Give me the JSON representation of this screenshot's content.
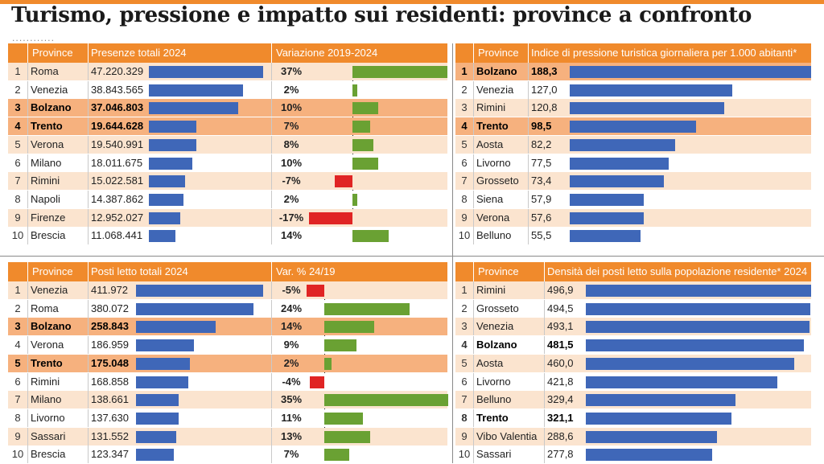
{
  "title": "Turismo, pressione e impatto sui residenti: province a confronto",
  "dots": "............",
  "colors": {
    "accent": "#f08a2c",
    "bar": "#3f67b8",
    "positive": "#6aa133",
    "negative": "#e02424",
    "highlight_row": "#f6b17e",
    "odd_row": "#fbe4cf"
  },
  "chart_data": [
    {
      "type": "table",
      "headers": {
        "province": "Province",
        "value": "Presenze totali 2024",
        "change": "Variazione 2019-2024"
      },
      "highlight_ranks": [
        3,
        4
      ],
      "rows": [
        {
          "rank": "1",
          "province": "Roma",
          "value_label": "47.220.329",
          "value": 47220329,
          "change_label": "37%",
          "change": 37
        },
        {
          "rank": "2",
          "province": "Venezia",
          "value_label": "38.843.565",
          "value": 38843565,
          "change_label": "2%",
          "change": 2
        },
        {
          "rank": "3",
          "province": "Bolzano",
          "value_label": "37.046.803",
          "value": 37046803,
          "change_label": "10%",
          "change": 10
        },
        {
          "rank": "4",
          "province": "Trento",
          "value_label": "19.644.628",
          "value": 19644628,
          "change_label": "7%",
          "change": 7
        },
        {
          "rank": "5",
          "province": "Verona",
          "value_label": "19.540.991",
          "value": 19540991,
          "change_label": "8%",
          "change": 8
        },
        {
          "rank": "6",
          "province": "Milano",
          "value_label": "18.011.675",
          "value": 18011675,
          "change_label": "10%",
          "change": 10
        },
        {
          "rank": "7",
          "province": "Rimini",
          "value_label": "15.022.581",
          "value": 15022581,
          "change_label": "-7%",
          "change": -7
        },
        {
          "rank": "8",
          "province": "Napoli",
          "value_label": "14.387.862",
          "value": 14387862,
          "change_label": "2%",
          "change": 2
        },
        {
          "rank": "9",
          "province": "Firenze",
          "value_label": "12.952.027",
          "value": 12952027,
          "change_label": "-17%",
          "change": -17
        },
        {
          "rank": "10",
          "province": "Brescia",
          "value_label": "11.068.441",
          "value": 11068441,
          "change_label": "14%",
          "change": 14
        }
      ]
    },
    {
      "type": "table",
      "headers": {
        "province": "Province",
        "value": "Indice di pressione turistica giornaliera per 1.000 abitanti*"
      },
      "highlight_ranks": [
        1,
        4
      ],
      "rows": [
        {
          "rank": "1",
          "province": "Bolzano",
          "value_label": "188,3",
          "value": 188.3
        },
        {
          "rank": "2",
          "province": "Venezia",
          "value_label": "127,0",
          "value": 127.0
        },
        {
          "rank": "3",
          "province": "Rimini",
          "value_label": "120,8",
          "value": 120.8
        },
        {
          "rank": "4",
          "province": "Trento",
          "value_label": "98,5",
          "value": 98.5
        },
        {
          "rank": "5",
          "province": "Aosta",
          "value_label": "82,2",
          "value": 82.2
        },
        {
          "rank": "6",
          "province": "Livorno",
          "value_label": "77,5",
          "value": 77.5
        },
        {
          "rank": "7",
          "province": "Grosseto",
          "value_label": "73,4",
          "value": 73.4
        },
        {
          "rank": "8",
          "province": "Siena",
          "value_label": "57,9",
          "value": 57.9
        },
        {
          "rank": "9",
          "province": "Verona",
          "value_label": "57,6",
          "value": 57.6
        },
        {
          "rank": "10",
          "province": "Belluno",
          "value_label": "55,5",
          "value": 55.5
        }
      ]
    },
    {
      "type": "table",
      "headers": {
        "province": "Province",
        "value": "Posti letto totali 2024",
        "change": "Var. % 24/19"
      },
      "highlight_ranks": [
        3,
        5
      ],
      "rows": [
        {
          "rank": "1",
          "province": "Venezia",
          "value_label": "411.972",
          "value": 411972,
          "change_label": "-5%",
          "change": -5
        },
        {
          "rank": "2",
          "province": "Roma",
          "value_label": "380.072",
          "value": 380072,
          "change_label": "24%",
          "change": 24
        },
        {
          "rank": "3",
          "province": "Bolzano",
          "value_label": "258.843",
          "value": 258843,
          "change_label": "14%",
          "change": 14
        },
        {
          "rank": "4",
          "province": "Verona",
          "value_label": "186.959",
          "value": 186959,
          "change_label": "9%",
          "change": 9
        },
        {
          "rank": "5",
          "province": "Trento",
          "value_label": "175.048",
          "value": 175048,
          "change_label": "2%",
          "change": 2
        },
        {
          "rank": "6",
          "province": "Rimini",
          "value_label": "168.858",
          "value": 168858,
          "change_label": "-4%",
          "change": -4
        },
        {
          "rank": "7",
          "province": "Milano",
          "value_label": "138.661",
          "value": 138661,
          "change_label": "35%",
          "change": 35
        },
        {
          "rank": "8",
          "province": "Livorno",
          "value_label": "137.630",
          "value": 137630,
          "change_label": "11%",
          "change": 11
        },
        {
          "rank": "9",
          "province": "Sassari",
          "value_label": "131.552",
          "value": 131552,
          "change_label": "13%",
          "change": 13
        },
        {
          "rank": "10",
          "province": "Brescia",
          "value_label": "123.347",
          "value": 123347,
          "change_label": "7%",
          "change": 7
        }
      ]
    },
    {
      "type": "table",
      "headers": {
        "province": "Province",
        "value": "Densità dei posti letto sulla popolazione residente* 2024"
      },
      "highlight_ranks": [],
      "bold_ranks": [
        4,
        8
      ],
      "rows": [
        {
          "rank": "1",
          "province": "Rimini",
          "value_label": "496,9",
          "value": 496.9
        },
        {
          "rank": "2",
          "province": "Grosseto",
          "value_label": "494,5",
          "value": 494.5
        },
        {
          "rank": "3",
          "province": "Venezia",
          "value_label": "493,1",
          "value": 493.1
        },
        {
          "rank": "4",
          "province": "Bolzano",
          "value_label": "481,5",
          "value": 481.5
        },
        {
          "rank": "5",
          "province": "Aosta",
          "value_label": "460,0",
          "value": 460.0
        },
        {
          "rank": "6",
          "province": "Livorno",
          "value_label": "421,8",
          "value": 421.8
        },
        {
          "rank": "7",
          "province": "Belluno",
          "value_label": "329,4",
          "value": 329.4
        },
        {
          "rank": "8",
          "province": "Trento",
          "value_label": "321,1",
          "value": 321.1
        },
        {
          "rank": "9",
          "province": "Vibo Valentia",
          "value_label": "288,6",
          "value": 288.6
        },
        {
          "rank": "10",
          "province": "Sassari",
          "value_label": "277,8",
          "value": 277.8
        }
      ]
    }
  ]
}
